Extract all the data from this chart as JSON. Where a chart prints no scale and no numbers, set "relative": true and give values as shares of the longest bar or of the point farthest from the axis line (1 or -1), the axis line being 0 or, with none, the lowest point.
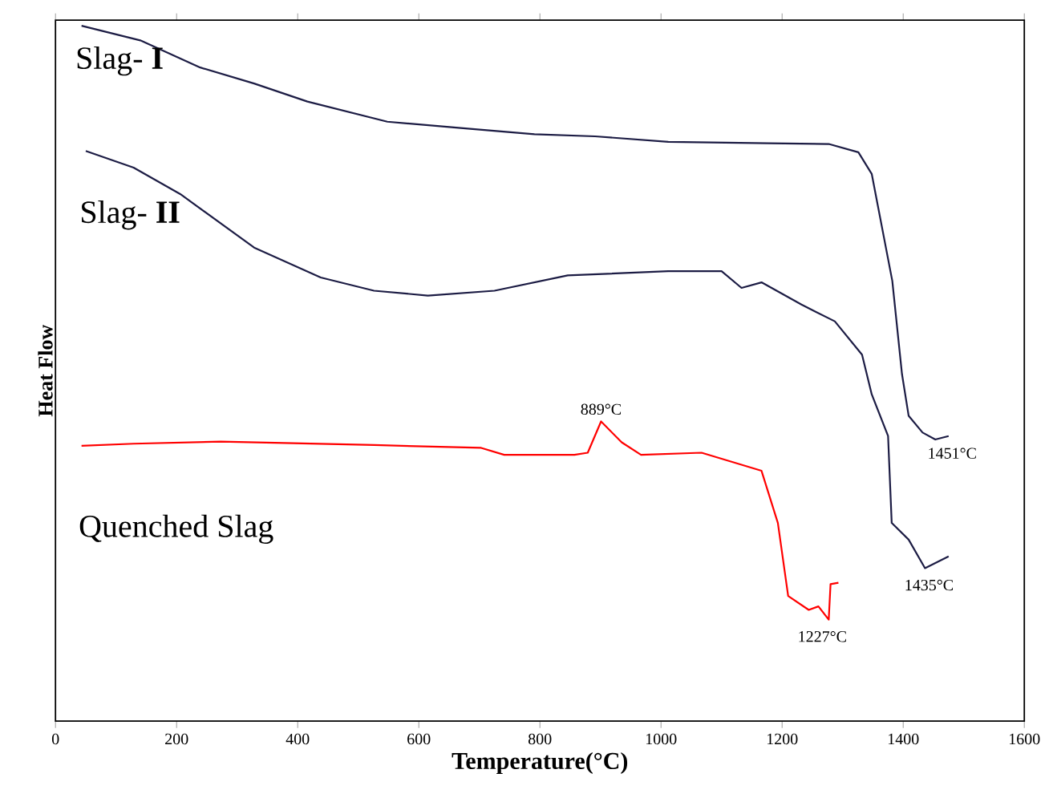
{
  "chart_data": {
    "type": "line",
    "xlabel": "Temperature(°C)",
    "ylabel": "Heat Flow",
    "relative": true,
    "xlim": [
      0,
      1600
    ],
    "xticks": [
      0,
      200,
      400,
      600,
      800,
      1000,
      1200,
      1400,
      1600
    ],
    "grid": false,
    "legend": false,
    "marker": "none",
    "line_style": "solid",
    "series": [
      {
        "name": "Slag- **I**",
        "color": "#1c1c44",
        "x": [
          43,
          140,
          239,
          328,
          416,
          548,
          681,
          791,
          891,
          1012,
          1177,
          1277,
          1326,
          1348,
          1382,
          1398,
          1409,
          1432,
          1453,
          1475
        ],
        "values": [
          1.0,
          0.979,
          0.94,
          0.917,
          0.891,
          0.862,
          0.852,
          0.844,
          0.841,
          0.833,
          0.831,
          0.83,
          0.818,
          0.787,
          0.633,
          0.499,
          0.439,
          0.415,
          0.405,
          0.41
        ]
      },
      {
        "name": "Slag- **II**",
        "color": "#1c1c44",
        "x": [
          50,
          129,
          206,
          328,
          438,
          526,
          615,
          725,
          846,
          1012,
          1100,
          1133,
          1166,
          1232,
          1287,
          1332,
          1348,
          1375,
          1381,
          1409,
          1436,
          1475
        ],
        "values": [
          0.82,
          0.796,
          0.758,
          0.681,
          0.638,
          0.619,
          0.612,
          0.619,
          0.641,
          0.647,
          0.647,
          0.623,
          0.631,
          0.599,
          0.575,
          0.527,
          0.47,
          0.41,
          0.285,
          0.261,
          0.22,
          0.237
        ]
      },
      {
        "name": "Quenched Slag",
        "color": "#ff0000",
        "x": [
          43,
          129,
          273,
          526,
          703,
          741,
          857,
          879,
          901,
          935,
          967,
          1067,
          1166,
          1193,
          1210,
          1244,
          1260,
          1277,
          1280,
          1293
        ],
        "values": [
          0.396,
          0.399,
          0.402,
          0.397,
          0.393,
          0.383,
          0.383,
          0.386,
          0.431,
          0.401,
          0.383,
          0.386,
          0.36,
          0.285,
          0.18,
          0.16,
          0.165,
          0.146,
          0.197,
          0.199
        ]
      }
    ],
    "annotations": [
      {
        "text": "889°C",
        "x": 901,
        "y": 0.431
      },
      {
        "text": "1451°C",
        "x": 1453,
        "y": 0.405
      },
      {
        "text": "1435°C",
        "x": 1436,
        "y": 0.22
      },
      {
        "text": "1227°C",
        "x": 1277,
        "y": 0.146
      }
    ]
  }
}
